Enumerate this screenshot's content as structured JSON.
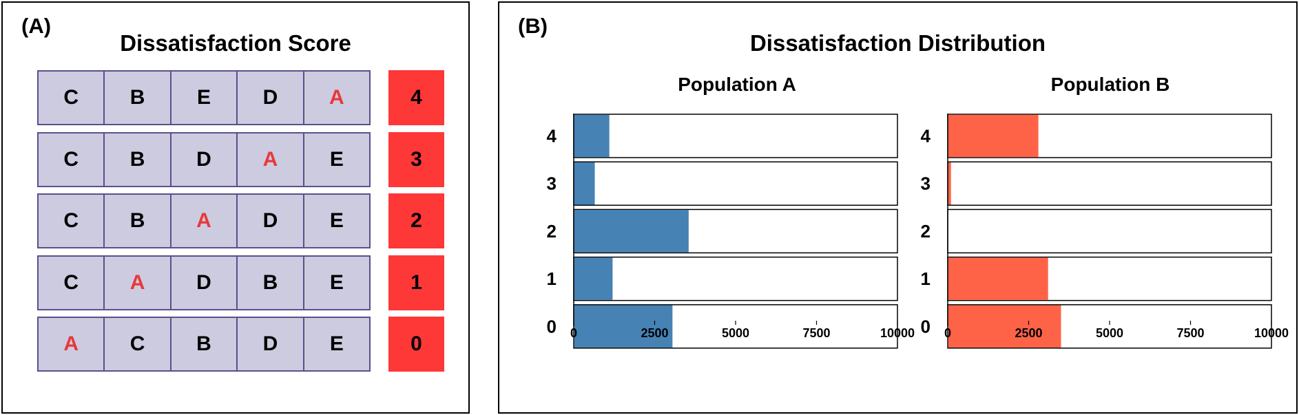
{
  "panel_a": {
    "label": "(A)",
    "title": "Dissatisfaction Score",
    "highlight_letter": "A",
    "rows": [
      {
        "cells": [
          "C",
          "B",
          "E",
          "D",
          "A"
        ],
        "score": "4"
      },
      {
        "cells": [
          "C",
          "B",
          "D",
          "A",
          "E"
        ],
        "score": "3"
      },
      {
        "cells": [
          "C",
          "B",
          "A",
          "D",
          "E"
        ],
        "score": "2"
      },
      {
        "cells": [
          "C",
          "A",
          "D",
          "B",
          "E"
        ],
        "score": "1"
      },
      {
        "cells": [
          "A",
          "C",
          "B",
          "D",
          "E"
        ],
        "score": "0"
      }
    ],
    "colors": {
      "cell_fill": "#cdcbe0",
      "cell_border": "#5a4f8c",
      "highlight_text": "#e8383a",
      "score_fill": "#fe3737"
    }
  },
  "panel_b": {
    "label": "(B)",
    "title": "Dissatisfaction Distribution"
  },
  "chart_data": [
    {
      "type": "bar",
      "orientation": "horizontal",
      "title": "Population A",
      "categories": [
        "4",
        "3",
        "2",
        "1",
        "0"
      ],
      "values": [
        1100,
        650,
        3550,
        1200,
        3050
      ],
      "xlim": [
        0,
        10000
      ],
      "xticks": [
        "0",
        "2500",
        "5000",
        "7500",
        "10000"
      ],
      "color": "#4682b4",
      "grid": false
    },
    {
      "type": "bar",
      "orientation": "horizontal",
      "title": "Population B",
      "categories": [
        "4",
        "3",
        "2",
        "1",
        "0"
      ],
      "values": [
        2800,
        100,
        0,
        3100,
        3500
      ],
      "xlim": [
        0,
        10000
      ],
      "xticks": [
        "0",
        "2500",
        "5000",
        "7500",
        "10000"
      ],
      "color": "#ff6347",
      "grid": false
    }
  ]
}
